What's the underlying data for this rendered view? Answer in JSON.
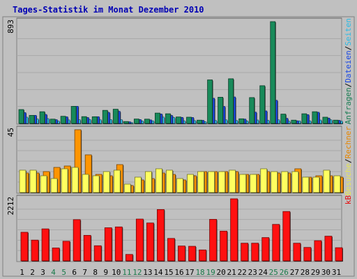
{
  "chart_data": {
    "type": "bar",
    "title": "Tages-Statistik im Monat Dezember 2010",
    "days": [
      "1",
      "2",
      "3",
      "4",
      "5",
      "6",
      "7",
      "8",
      "9",
      "10",
      "11",
      "12",
      "13",
      "14",
      "15",
      "16",
      "17",
      "18",
      "19",
      "20",
      "21",
      "22",
      "23",
      "24",
      "25",
      "26",
      "27",
      "28",
      "29",
      "30",
      "31"
    ],
    "weekend_days": [
      "4",
      "5",
      "11",
      "12",
      "18",
      "19",
      "25",
      "26"
    ],
    "panels": [
      {
        "name": "top",
        "max_label": "893",
        "ylim": [
          0,
          893
        ],
        "legend": [
          "Anfragen",
          "Dateien",
          "Seiten"
        ],
        "series": [
          {
            "name": "Anfragen",
            "color": "#188a5a",
            "values": [
              122,
              71,
              103,
              38,
              63,
              150,
              60,
              59,
              115,
              125,
              17,
              39,
              38,
              91,
              85,
              57,
              55,
              29,
              382,
              230,
              392,
              41,
              227,
              331,
              893,
              82,
              29,
              85,
              103,
              55,
              29
            ]
          },
          {
            "name": "Dateien",
            "color": "#1a4fff",
            "values": [
              95,
              71,
              79,
              33,
              58,
              150,
              52,
              59,
              97,
              106,
              14,
              34,
              31,
              83,
              70,
              53,
              52,
              27,
              221,
              149,
              232,
              38,
              99,
              110,
              203,
              45,
              23,
              77,
              98,
              47,
              27
            ]
          },
          {
            "name": "Seiten",
            "color": "#30d0ff",
            "values": [
              55,
              39,
              43,
              21,
              31,
              33,
              34,
              32,
              34,
              33,
              8,
              22,
              23,
              56,
              53,
              23,
              25,
              16,
              26,
              32,
              26,
              22,
              30,
              28,
              32,
              20,
              22,
              23,
              30,
              32,
              20
            ]
          }
        ]
      },
      {
        "name": "middle",
        "max_label": "45",
        "ylim": [
          0,
          45
        ],
        "legend": [
          "Besuche",
          "Rechner"
        ],
        "series": [
          {
            "name": "Besuche",
            "color": "#ffff60",
            "values": [
              16,
              16,
              12,
              10,
              17,
              18,
              13,
              12,
              15,
              16,
              6,
              11,
              15,
              17,
              16,
              10,
              13,
              15,
              15,
              15,
              16,
              13,
              13,
              17,
              15,
              15,
              15,
              11,
              11,
              16,
              12
            ]
          },
          {
            "name": "Rechner",
            "color": "#ff9500",
            "values": [
              14,
              14,
              15,
              18,
              19,
              45,
              27,
              13,
              12,
              20,
              5,
              9,
              10,
              14,
              13,
              9,
              12,
              15,
              15,
              15,
              15,
              13,
              13,
              15,
              14,
              14,
              17,
              11,
              12,
              12,
              11
            ]
          }
        ]
      },
      {
        "name": "bottom",
        "max_label": "2212",
        "ylim": [
          0,
          2212
        ],
        "legend": [
          "kB"
        ],
        "series": [
          {
            "name": "kB",
            "color": "#ff1010",
            "values": [
              1020,
              740,
              1140,
              460,
              700,
              1470,
              910,
              540,
              1180,
              1210,
              230,
              1490,
              1350,
              1830,
              800,
              530,
              520,
              390,
              1480,
              1060,
              2212,
              630,
              630,
              830,
              1300,
              1760,
              630,
              480,
              720,
              880,
              470
            ]
          }
        ]
      }
    ]
  }
}
